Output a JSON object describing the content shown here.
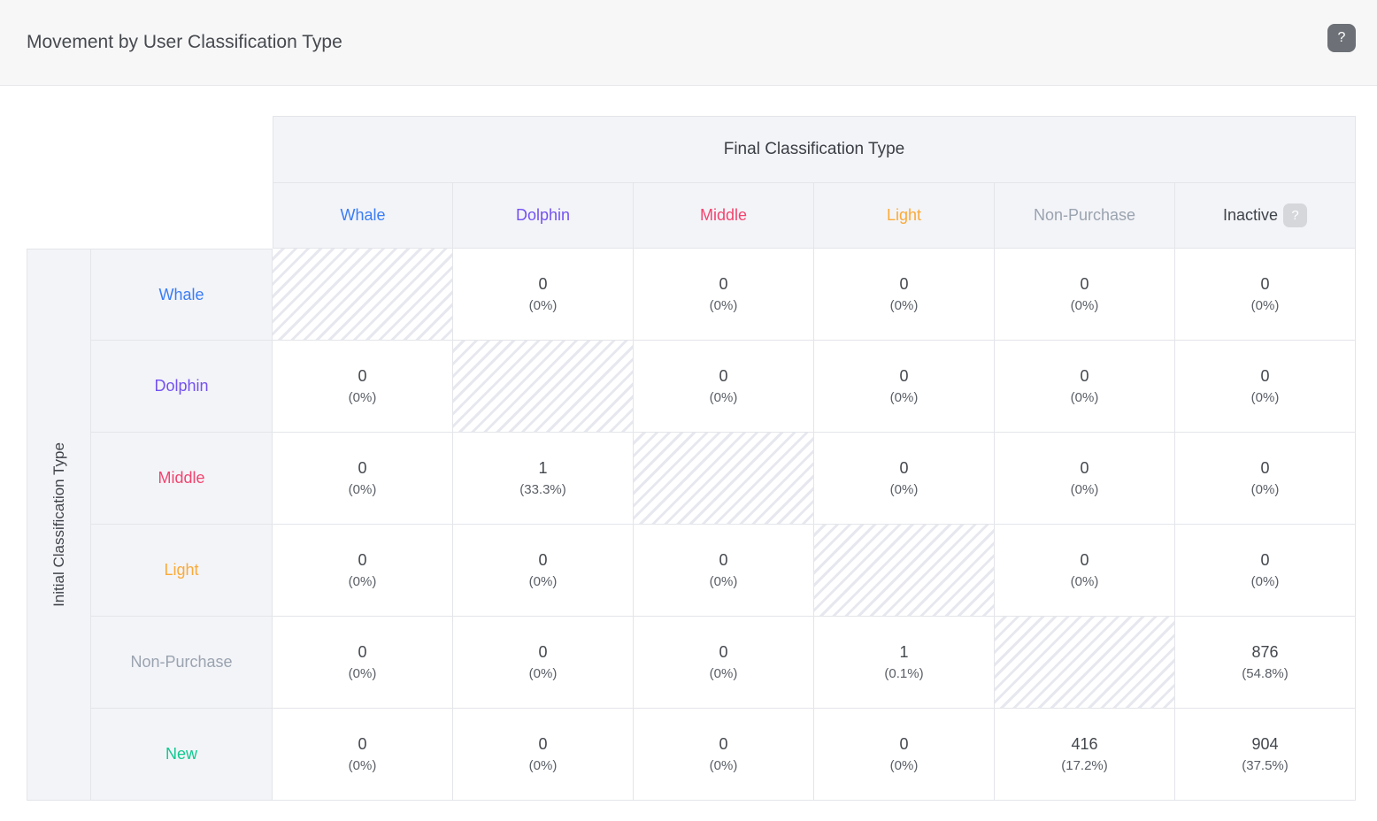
{
  "header": {
    "title": "Movement by User Classification Type",
    "help_label": "?"
  },
  "matrix": {
    "column_axis_label": "Final Classification Type",
    "row_axis_label": "Initial Classification Type",
    "inactive_help": "?",
    "columns": [
      {
        "label": "Whale",
        "color": "#3a7df5"
      },
      {
        "label": "Dolphin",
        "color": "#7452f0"
      },
      {
        "label": "Middle",
        "color": "#f2446f"
      },
      {
        "label": "Light",
        "color": "#fbaa38"
      },
      {
        "label": "Non-Purchase",
        "color": "#9aa3af"
      },
      {
        "label": "Inactive",
        "color": "#3f444b"
      }
    ],
    "rows": [
      {
        "label": "Whale",
        "color": "#3a7df5",
        "cells": [
          {
            "hatched": true
          },
          {
            "value": "0",
            "pct": "(0%)"
          },
          {
            "value": "0",
            "pct": "(0%)"
          },
          {
            "value": "0",
            "pct": "(0%)"
          },
          {
            "value": "0",
            "pct": "(0%)"
          },
          {
            "value": "0",
            "pct": "(0%)"
          }
        ]
      },
      {
        "label": "Dolphin",
        "color": "#7452f0",
        "cells": [
          {
            "value": "0",
            "pct": "(0%)"
          },
          {
            "hatched": true
          },
          {
            "value": "0",
            "pct": "(0%)"
          },
          {
            "value": "0",
            "pct": "(0%)"
          },
          {
            "value": "0",
            "pct": "(0%)"
          },
          {
            "value": "0",
            "pct": "(0%)"
          }
        ]
      },
      {
        "label": "Middle",
        "color": "#f2446f",
        "cells": [
          {
            "value": "0",
            "pct": "(0%)"
          },
          {
            "value": "1",
            "pct": "(33.3%)"
          },
          {
            "hatched": true
          },
          {
            "value": "0",
            "pct": "(0%)"
          },
          {
            "value": "0",
            "pct": "(0%)"
          },
          {
            "value": "0",
            "pct": "(0%)"
          }
        ]
      },
      {
        "label": "Light",
        "color": "#fbaa38",
        "cells": [
          {
            "value": "0",
            "pct": "(0%)"
          },
          {
            "value": "0",
            "pct": "(0%)"
          },
          {
            "value": "0",
            "pct": "(0%)"
          },
          {
            "hatched": true
          },
          {
            "value": "0",
            "pct": "(0%)"
          },
          {
            "value": "0",
            "pct": "(0%)"
          }
        ]
      },
      {
        "label": "Non-Purchase",
        "color": "#9aa3af",
        "cells": [
          {
            "value": "0",
            "pct": "(0%)"
          },
          {
            "value": "0",
            "pct": "(0%)"
          },
          {
            "value": "0",
            "pct": "(0%)"
          },
          {
            "value": "1",
            "pct": "(0.1%)"
          },
          {
            "hatched": true
          },
          {
            "value": "876",
            "pct": "(54.8%)"
          }
        ]
      },
      {
        "label": "New",
        "color": "#10c98f",
        "cells": [
          {
            "value": "0",
            "pct": "(0%)"
          },
          {
            "value": "0",
            "pct": "(0%)"
          },
          {
            "value": "0",
            "pct": "(0%)"
          },
          {
            "value": "0",
            "pct": "(0%)"
          },
          {
            "value": "416",
            "pct": "(17.2%)"
          },
          {
            "value": "904",
            "pct": "(37.5%)"
          }
        ]
      }
    ]
  }
}
